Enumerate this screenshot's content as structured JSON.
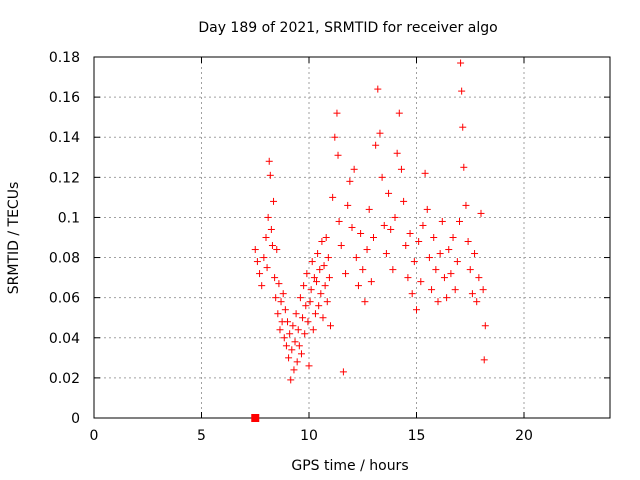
{
  "chart_data": {
    "type": "scatter",
    "title": "Day 189 of 2021, SRMTID for receiver algo",
    "xlabel": "GPS time / hours",
    "ylabel": "SRMTID / TECUs",
    "xlim": [
      0,
      24
    ],
    "ylim": [
      0,
      0.18
    ],
    "xticks": [
      0,
      5,
      10,
      15,
      20
    ],
    "yticks": [
      0,
      0.02,
      0.04,
      0.06,
      0.08,
      0.1,
      0.12,
      0.14,
      0.16,
      0.18
    ],
    "xtick_labels": [
      "0",
      "5",
      "10",
      "15",
      "20"
    ],
    "ytick_labels": [
      "0",
      "0.02",
      "0.04",
      "0.06",
      "0.08",
      "0.1",
      "0.12",
      "0.14",
      "0.16",
      "0.18"
    ],
    "grid": true,
    "marker": "+",
    "series": [
      {
        "name": "SRMTID",
        "color": "#ff0000",
        "points": [
          [
            7.5,
            0.084
          ],
          [
            7.6,
            0.078
          ],
          [
            7.7,
            0.072
          ],
          [
            7.8,
            0.066
          ],
          [
            7.9,
            0.08
          ],
          [
            8.0,
            0.09
          ],
          [
            8.05,
            0.075
          ],
          [
            8.1,
            0.1
          ],
          [
            8.15,
            0.128
          ],
          [
            8.2,
            0.121
          ],
          [
            8.25,
            0.094
          ],
          [
            8.3,
            0.086
          ],
          [
            8.35,
            0.108
          ],
          [
            8.4,
            0.07
          ],
          [
            8.45,
            0.06
          ],
          [
            8.5,
            0.084
          ],
          [
            8.55,
            0.052
          ],
          [
            8.6,
            0.067
          ],
          [
            8.65,
            0.044
          ],
          [
            8.7,
            0.058
          ],
          [
            8.75,
            0.048
          ],
          [
            8.8,
            0.062
          ],
          [
            8.85,
            0.04
          ],
          [
            8.9,
            0.054
          ],
          [
            8.95,
            0.036
          ],
          [
            9.0,
            0.048
          ],
          [
            9.05,
            0.03
          ],
          [
            9.1,
            0.042
          ],
          [
            9.15,
            0.019
          ],
          [
            9.2,
            0.034
          ],
          [
            9.25,
            0.046
          ],
          [
            9.3,
            0.024
          ],
          [
            9.35,
            0.038
          ],
          [
            9.4,
            0.052
          ],
          [
            9.45,
            0.028
          ],
          [
            9.5,
            0.044
          ],
          [
            9.55,
            0.036
          ],
          [
            9.6,
            0.06
          ],
          [
            9.65,
            0.032
          ],
          [
            9.7,
            0.05
          ],
          [
            9.75,
            0.066
          ],
          [
            9.8,
            0.042
          ],
          [
            9.85,
            0.056
          ],
          [
            9.9,
            0.072
          ],
          [
            9.95,
            0.048
          ],
          [
            10.0,
            0.026
          ],
          [
            10.05,
            0.058
          ],
          [
            10.1,
            0.064
          ],
          [
            10.15,
            0.078
          ],
          [
            10.2,
            0.044
          ],
          [
            10.25,
            0.07
          ],
          [
            10.3,
            0.052
          ],
          [
            10.35,
            0.068
          ],
          [
            10.4,
            0.082
          ],
          [
            10.45,
            0.056
          ],
          [
            10.5,
            0.074
          ],
          [
            10.55,
            0.062
          ],
          [
            10.6,
            0.088
          ],
          [
            10.65,
            0.05
          ],
          [
            10.7,
            0.076
          ],
          [
            10.75,
            0.066
          ],
          [
            10.8,
            0.09
          ],
          [
            10.85,
            0.058
          ],
          [
            10.9,
            0.08
          ],
          [
            10.95,
            0.07
          ],
          [
            11.0,
            0.046
          ],
          [
            11.1,
            0.11
          ],
          [
            11.2,
            0.14
          ],
          [
            11.3,
            0.152
          ],
          [
            11.35,
            0.131
          ],
          [
            11.4,
            0.098
          ],
          [
            11.5,
            0.086
          ],
          [
            11.6,
            0.023
          ],
          [
            11.7,
            0.072
          ],
          [
            11.8,
            0.106
          ],
          [
            11.9,
            0.118
          ],
          [
            12.0,
            0.095
          ],
          [
            12.1,
            0.124
          ],
          [
            12.2,
            0.08
          ],
          [
            12.3,
            0.066
          ],
          [
            12.4,
            0.092
          ],
          [
            12.5,
            0.074
          ],
          [
            12.6,
            0.058
          ],
          [
            12.7,
            0.084
          ],
          [
            12.8,
            0.104
          ],
          [
            12.9,
            0.068
          ],
          [
            13.0,
            0.09
          ],
          [
            13.1,
            0.136
          ],
          [
            13.2,
            0.164
          ],
          [
            13.3,
            0.142
          ],
          [
            13.4,
            0.12
          ],
          [
            13.5,
            0.096
          ],
          [
            13.6,
            0.082
          ],
          [
            13.7,
            0.112
          ],
          [
            13.8,
            0.094
          ],
          [
            13.9,
            0.074
          ],
          [
            14.0,
            0.1
          ],
          [
            14.1,
            0.132
          ],
          [
            14.2,
            0.152
          ],
          [
            14.3,
            0.124
          ],
          [
            14.4,
            0.108
          ],
          [
            14.5,
            0.086
          ],
          [
            14.6,
            0.07
          ],
          [
            14.7,
            0.092
          ],
          [
            14.8,
            0.062
          ],
          [
            14.9,
            0.078
          ],
          [
            15.0,
            0.054
          ],
          [
            15.1,
            0.088
          ],
          [
            15.2,
            0.068
          ],
          [
            15.3,
            0.096
          ],
          [
            15.4,
            0.122
          ],
          [
            15.5,
            0.104
          ],
          [
            15.6,
            0.08
          ],
          [
            15.7,
            0.064
          ],
          [
            15.8,
            0.09
          ],
          [
            15.9,
            0.074
          ],
          [
            16.0,
            0.058
          ],
          [
            16.1,
            0.082
          ],
          [
            16.2,
            0.098
          ],
          [
            16.3,
            0.07
          ],
          [
            16.4,
            0.06
          ],
          [
            16.5,
            0.084
          ],
          [
            16.6,
            0.072
          ],
          [
            16.7,
            0.09
          ],
          [
            16.8,
            0.064
          ],
          [
            16.9,
            0.078
          ],
          [
            17.0,
            0.098
          ],
          [
            17.05,
            0.177
          ],
          [
            17.1,
            0.163
          ],
          [
            17.15,
            0.145
          ],
          [
            17.2,
            0.125
          ],
          [
            17.3,
            0.106
          ],
          [
            17.4,
            0.088
          ],
          [
            17.5,
            0.074
          ],
          [
            17.6,
            0.062
          ],
          [
            17.7,
            0.082
          ],
          [
            17.8,
            0.058
          ],
          [
            17.9,
            0.07
          ],
          [
            18.0,
            0.102
          ],
          [
            18.1,
            0.064
          ],
          [
            18.15,
            0.029
          ],
          [
            18.2,
            0.046
          ]
        ]
      },
      {
        "name": "Zero marker",
        "color": "#ff0000",
        "marker": "square",
        "points": [
          [
            7.5,
            0.0
          ]
        ]
      }
    ]
  },
  "colors": {
    "data": "#ff0000",
    "grid": "#a0a0a0",
    "axis": "#000000"
  }
}
